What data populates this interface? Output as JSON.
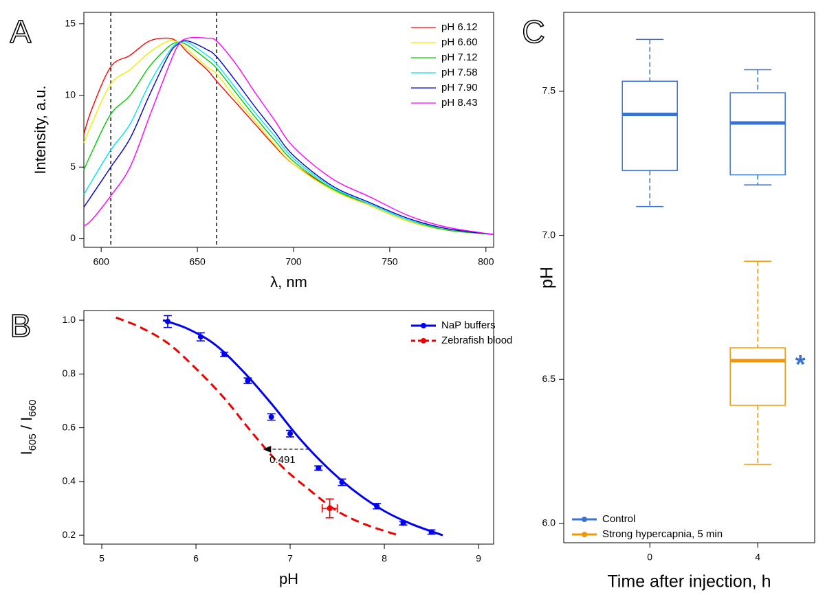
{
  "chart_data": [
    {
      "type": "line",
      "panel_label": "A",
      "xlabel": "λ, nm",
      "ylabel": "Intensity, a.u.",
      "x": [
        591,
        595,
        605,
        615,
        625,
        635,
        640,
        645,
        655,
        660,
        670,
        680,
        690,
        700,
        720,
        740,
        760,
        780,
        804
      ],
      "series": [
        {
          "name": "pH 6.12",
          "color": "#ff0000",
          "values": [
            7.3,
            9,
            12,
            12.8,
            13.8,
            14,
            13.7,
            13,
            11.8,
            11,
            9.5,
            8,
            6.5,
            5.2,
            3.5,
            2.3,
            1.2,
            0.6,
            0.3
          ]
        },
        {
          "name": "pH 6.60",
          "color": "#eeee00",
          "values": [
            6.7,
            8,
            10.8,
            11.8,
            13,
            13.8,
            13.7,
            13.2,
            12,
            11.5,
            9.8,
            8.2,
            6.6,
            5.2,
            3.4,
            2.3,
            1.2,
            0.6,
            0.3
          ]
        },
        {
          "name": "pH 7.12",
          "color": "#00cc00",
          "values": [
            4.8,
            6,
            8.7,
            10,
            12,
            13.4,
            13.7,
            13.5,
            12.5,
            11.9,
            10.2,
            8.5,
            6.9,
            5.4,
            3.5,
            2.4,
            1.3,
            0.6,
            0.3
          ]
        },
        {
          "name": "pH 7.58",
          "color": "#00e5ee",
          "values": [
            3.1,
            4,
            6.2,
            8,
            10.8,
            13,
            13.7,
            13.7,
            12.8,
            12.2,
            10.5,
            8.8,
            7.2,
            5.6,
            3.6,
            2.4,
            1.3,
            0.7,
            0.3
          ]
        },
        {
          "name": "pH 7.90",
          "color": "#0000cc",
          "values": [
            2.2,
            3,
            5,
            7,
            10,
            12.8,
            13.6,
            13.8,
            13.2,
            12.7,
            11,
            9.2,
            7.5,
            5.8,
            3.7,
            2.5,
            1.4,
            0.7,
            0.3
          ]
        },
        {
          "name": "pH 8.43",
          "color": "#ff00ff",
          "values": [
            0.9,
            1.3,
            3,
            5,
            8.5,
            12,
            13.5,
            14,
            14,
            13.8,
            12.2,
            10.2,
            8.3,
            6.4,
            4.2,
            2.9,
            1.6,
            0.8,
            0.3
          ]
        }
      ],
      "vlines": [
        605,
        660
      ],
      "xlim": [
        591,
        804
      ],
      "ylim": [
        -0.6,
        15.8
      ],
      "xticks": [
        600,
        650,
        700,
        750,
        800
      ],
      "yticks": [
        0,
        5,
        10,
        15
      ],
      "legend": "upper right"
    },
    {
      "type": "errorbar",
      "panel_label": "B",
      "xlabel": "pH",
      "ylabel": [
        {
          "text": "I"
        },
        {
          "text": "605",
          "sub": true
        },
        {
          "text": " / I"
        },
        {
          "text": "660",
          "sub": true
        }
      ],
      "series": [
        {
          "name": "NaP buffers",
          "color": "#0000ee",
          "dash": false,
          "x": [
            5.7,
            6.05,
            6.3,
            6.55,
            6.8,
            7.0,
            7.3,
            7.55,
            7.92,
            8.2,
            8.5
          ],
          "values": [
            0.995,
            0.938,
            0.873,
            0.775,
            0.64,
            0.578,
            0.45,
            0.397,
            0.308,
            0.245,
            0.212
          ],
          "errors": [
            0.022,
            0.015,
            0.008,
            0.01,
            0.012,
            0.012,
            0.008,
            0.012,
            0.01,
            0.007,
            0.008
          ],
          "fit": {
            "x": [
              5.65,
              5.9,
              6.2,
              6.5,
              6.8,
              7.1,
              7.4,
              7.7,
              8.0,
              8.3,
              8.62
            ],
            "values": [
              1.0,
              0.97,
              0.91,
              0.81,
              0.69,
              0.56,
              0.45,
              0.36,
              0.29,
              0.24,
              0.2
            ]
          }
        },
        {
          "name": "Zebrafish blood",
          "color": "#ee0000",
          "dash": true,
          "x": [
            7.42
          ],
          "values": [
            0.3
          ],
          "errors": [
            0.035
          ],
          "xerrors": [
            0.08
          ],
          "fit": {
            "x": [
              5.15,
              5.4,
              5.7,
              6.0,
              6.3,
              6.6,
              6.9,
              7.2,
              7.5,
              7.8,
              8.15
            ],
            "values": [
              1.01,
              0.975,
              0.915,
              0.82,
              0.71,
              0.58,
              0.46,
              0.37,
              0.29,
              0.24,
              0.2
            ]
          }
        }
      ],
      "annotation": {
        "text": "0.491",
        "y": 0.52,
        "x_from": 7.2,
        "x_to": 6.71
      },
      "xlim": [
        4.81,
        9.16
      ],
      "ylim": [
        0.167,
        1.036
      ],
      "xticks": [
        5,
        6,
        7,
        8,
        9
      ],
      "yticks": [
        0.2,
        0.4,
        0.6,
        0.8,
        {
          "value": 1,
          "label": "1.0"
        }
      ],
      "legend": "upper right"
    },
    {
      "type": "box",
      "panel_label": "C",
      "xlabel": "Time after injection, h",
      "ylabel": "pH",
      "categories": [
        "0",
        "4"
      ],
      "series": [
        {
          "name": "Control",
          "color": "#3a72d0",
          "boxes": [
            {
              "x": "0",
              "min": 7.1,
              "q1": 7.225,
              "median": 7.42,
              "q3": 7.535,
              "max": 7.68
            },
            {
              "x": "4",
              "min": 7.175,
              "q1": 7.21,
              "median": 7.39,
              "q3": 7.495,
              "max": 7.575
            }
          ]
        },
        {
          "name": "Strong hypercapnia, 5 min",
          "color": "#f0960a",
          "boxes": [
            {
              "x": "4",
              "min": 6.205,
              "q1": 6.41,
              "median": 6.565,
              "q3": 6.61,
              "max": 6.91
            }
          ]
        }
      ],
      "annotation": {
        "text": "*"
      },
      "ylim": [
        5.933,
        7.774
      ],
      "yticks": [
        {
          "value": 6,
          "label": "6.0"
        },
        6.5,
        {
          "value": 7,
          "label": "7.0"
        },
        7.5
      ],
      "legend": "lower left"
    }
  ]
}
